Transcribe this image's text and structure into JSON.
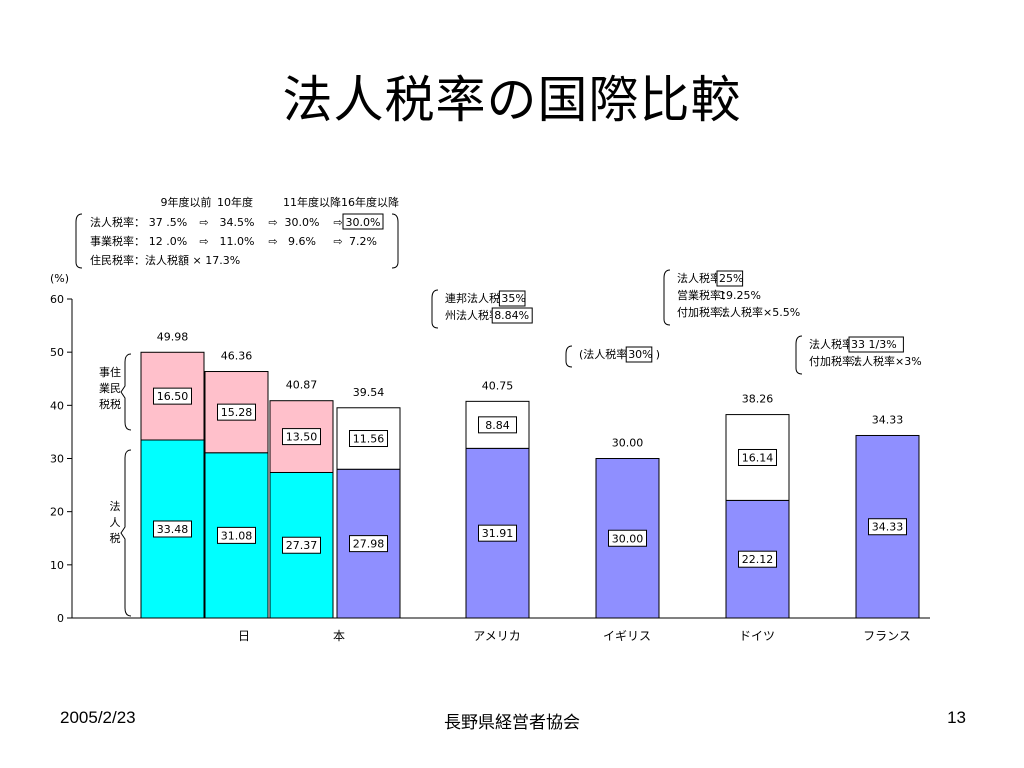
{
  "slide": {
    "title": "法人税率の国際比較",
    "footer_date": "2005/2/23",
    "footer_org": "長野県経営者協会",
    "page_number": "13"
  },
  "legend_box": {
    "header": [
      "9年度以前",
      "10年度",
      "11年度以降",
      "16年度以降"
    ],
    "rows": [
      {
        "label": "法人税率：",
        "values": [
          "37 .5%",
          "34.5%",
          "30.0%",
          "30.0%"
        ],
        "highlight_last": true
      },
      {
        "label": "事業税率：",
        "values": [
          "12 .0%",
          "11.0%",
          "9.6%",
          "7.2%"
        ],
        "highlight_last": false
      }
    ],
    "resident_row": "住民税率：法人税額 × 17.3%"
  },
  "country_notes": {
    "usa": [
      [
        "連邦法人税率：",
        "35%"
      ],
      [
        "州法人税率：",
        "8.84%"
      ]
    ],
    "uk": [
      [
        "(法人税率：",
        "30%",
        ")"
      ]
    ],
    "germany": [
      [
        "法人税率：",
        "25%"
      ],
      [
        "営業税率：",
        "19.25%",
        ""
      ],
      [
        "付加税率：",
        "法人税率×5.5%",
        ""
      ]
    ],
    "france": [
      [
        "法人税率：",
        "33 1/3%"
      ],
      [
        "付加税率：",
        "法人税率×3%",
        ""
      ]
    ]
  },
  "japan_brackets": {
    "local": [
      "事住",
      "業民",
      "税税"
    ],
    "corporate": [
      "法",
      "人",
      "税"
    ]
  },
  "chart_data": {
    "type": "bar",
    "stacked": true,
    "unit_label": "(%)",
    "ylim": [
      0,
      60
    ],
    "yticks": [
      "0",
      "10",
      "20",
      "30",
      "40",
      "50",
      "60"
    ],
    "grid": false,
    "bars": [
      {
        "values": [
          33.48,
          16.5
        ],
        "labels": [
          "33.48",
          "16.50"
        ],
        "total": "49.98",
        "colors": [
          "#00ffff",
          "#ffc0cb"
        ]
      },
      {
        "values": [
          31.08,
          15.28
        ],
        "labels": [
          "31.08",
          "15.28"
        ],
        "total": "46.36",
        "colors": [
          "#00ffff",
          "#ffc0cb"
        ]
      },
      {
        "values": [
          27.37,
          13.5
        ],
        "labels": [
          "27.37",
          "13.50"
        ],
        "total": "40.87",
        "colors": [
          "#00ffff",
          "#ffc0cb"
        ]
      },
      {
        "values": [
          27.98,
          11.56
        ],
        "labels": [
          "27.98",
          "11.56"
        ],
        "total": "39.54",
        "colors": [
          "#8f8fff",
          "#ffffff"
        ]
      },
      {
        "values": [
          31.91,
          8.84
        ],
        "labels": [
          "31.91",
          "8.84"
        ],
        "total": "40.75",
        "colors": [
          "#8f8fff",
          "#ffffff"
        ]
      },
      {
        "values": [
          30.0
        ],
        "labels": [
          "30.00"
        ],
        "total": "30.00",
        "colors": [
          "#8f8fff"
        ]
      },
      {
        "values": [
          22.12,
          16.14
        ],
        "labels": [
          "22.12",
          "16.14"
        ],
        "total": "38.26",
        "colors": [
          "#8f8fff",
          "#ffffff"
        ]
      },
      {
        "values": [
          34.33
        ],
        "labels": [
          "34.33"
        ],
        "total": "34.33",
        "colors": [
          "#8f8fff"
        ]
      }
    ],
    "category_labels": [
      "日",
      "本",
      "アメリカ",
      "イギリス",
      "ドイツ",
      "フランス"
    ]
  }
}
